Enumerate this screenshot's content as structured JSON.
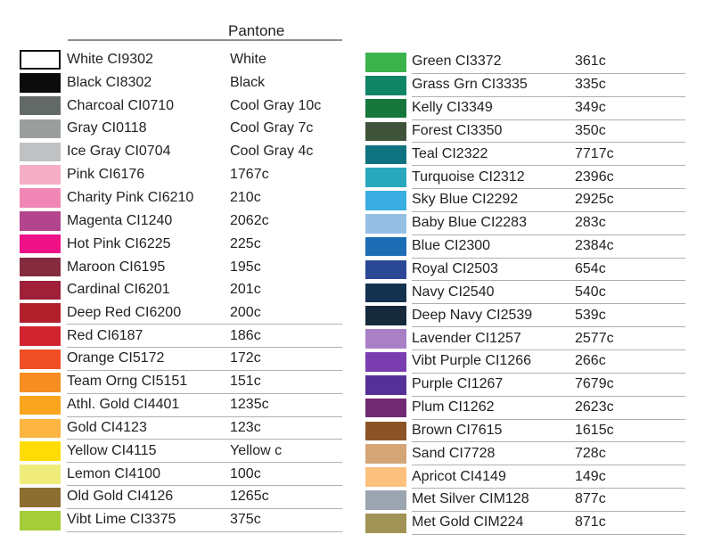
{
  "header": {
    "pantone_label": "Pantone"
  },
  "columns": {
    "left": {
      "rows": [
        {
          "label": "White CI9302",
          "pantone": "White",
          "color": "#ffffff",
          "underline": false,
          "border": true
        },
        {
          "label": "Black CI8302",
          "pantone": "Black",
          "color": "#0b0b0b",
          "underline": false
        },
        {
          "label": "Charcoal CI0710",
          "pantone": "Cool Gray 10c",
          "color": "#626966",
          "underline": false
        },
        {
          "label": "Gray CI0118",
          "pantone": "Cool Gray 7c",
          "color": "#9a9f9e",
          "underline": false
        },
        {
          "label": "Ice Gray CI0704",
          "pantone": "Cool Gray 4c",
          "color": "#c0c1c3",
          "underline": false
        },
        {
          "label": "Pink CI6176",
          "pantone": "1767c",
          "color": "#f5aec5",
          "underline": false
        },
        {
          "label": "Charity Pink CI6210",
          "pantone": "210c",
          "color": "#f087b5",
          "underline": false
        },
        {
          "label": "Magenta CI1240",
          "pantone": "2062c",
          "color": "#b3458f",
          "underline": false
        },
        {
          "label": "Hot Pink CI6225",
          "pantone": "225c",
          "color": "#ee1188",
          "underline": false
        },
        {
          "label": "Maroon CI6195",
          "pantone": "195c",
          "color": "#842c3d",
          "underline": false
        },
        {
          "label": "Cardinal CI6201",
          "pantone": "201c",
          "color": "#9f2038",
          "underline": false
        },
        {
          "label": "Deep Red CI6200",
          "pantone": "200c",
          "color": "#b2202b",
          "underline": true
        },
        {
          "label": "Red CI6187",
          "pantone": "186c",
          "color": "#d1232f",
          "underline": true
        },
        {
          "label": "Orange CI5172",
          "pantone": "172c",
          "color": "#f04e25",
          "underline": true
        },
        {
          "label": "Team Orng CI5151",
          "pantone": "151c",
          "color": "#f68d22",
          "underline": true
        },
        {
          "label": "Athl. Gold CI4401",
          "pantone": "1235c",
          "color": "#faa51d",
          "underline": true
        },
        {
          "label": "Gold CI4123",
          "pantone": "123c",
          "color": "#fbb540",
          "underline": true
        },
        {
          "label": "Yellow CI4115",
          "pantone": "Yellow c",
          "color": "#ffdc04",
          "underline": true
        },
        {
          "label": "Lemon CI4100",
          "pantone": "100c",
          "color": "#f0ec79",
          "underline": true
        },
        {
          "label": "Old Gold CI4126",
          "pantone": "1265c",
          "color": "#8d6e31",
          "underline": true
        },
        {
          "label": "Vibt Lime CI3375",
          "pantone": "375c",
          "color": "#a5cd39",
          "underline": true
        }
      ]
    },
    "right": {
      "rows": [
        {
          "label": "Green CI3372",
          "pantone": "361c",
          "color": "#3bb34c",
          "underline": true
        },
        {
          "label": "Grass Grn CI3335",
          "pantone": "335c",
          "color": "#0f8566",
          "underline": true
        },
        {
          "label": "Kelly CI3349",
          "pantone": "349c",
          "color": "#16763c",
          "underline": true
        },
        {
          "label": "Forest CI3350",
          "pantone": "350c",
          "color": "#3e5339",
          "underline": true
        },
        {
          "label": "Teal CI2322",
          "pantone": "7717c",
          "color": "#0e7280",
          "underline": true
        },
        {
          "label": "Turquoise CI2312",
          "pantone": "2396c",
          "color": "#29a8bd",
          "underline": true
        },
        {
          "label": "Sky Blue CI2292",
          "pantone": "2925c",
          "color": "#3aaee2",
          "underline": true
        },
        {
          "label": "Baby Blue CI2283",
          "pantone": "283c",
          "color": "#95bfe5",
          "underline": true
        },
        {
          "label": "Blue CI2300",
          "pantone": "2384c",
          "color": "#1d6db4",
          "underline": true
        },
        {
          "label": "Royal CI2503",
          "pantone": "654c",
          "color": "#2b4897",
          "underline": true
        },
        {
          "label": "Navy CI2540",
          "pantone": "540c",
          "color": "#143250",
          "underline": true
        },
        {
          "label": "Deep Navy CI2539",
          "pantone": "539c",
          "color": "#172a3b",
          "underline": true
        },
        {
          "label": "Lavender CI1257",
          "pantone": "2577c",
          "color": "#a980c6",
          "underline": true
        },
        {
          "label": "Vibt Purple CI1266",
          "pantone": "266c",
          "color": "#7a3eb1",
          "underline": true
        },
        {
          "label": "Purple CI1267",
          "pantone": "7679c",
          "color": "#543196",
          "underline": true
        },
        {
          "label": "Plum CI1262",
          "pantone": "2623c",
          "color": "#702a72",
          "underline": true
        },
        {
          "label": "Brown CI7615",
          "pantone": "1615c",
          "color": "#8b5426",
          "underline": true
        },
        {
          "label": "Sand CI7728",
          "pantone": "728c",
          "color": "#d3a577",
          "underline": true
        },
        {
          "label": "Apricot CI4149",
          "pantone": "149c",
          "color": "#fdc17e",
          "underline": true
        },
        {
          "label": "Met Silver CIM128",
          "pantone": "877c",
          "color": "#9ba5af",
          "underline": true
        },
        {
          "label": "Met Gold CIM224",
          "pantone": "871c",
          "color": "#a09355",
          "underline": true
        }
      ]
    }
  }
}
